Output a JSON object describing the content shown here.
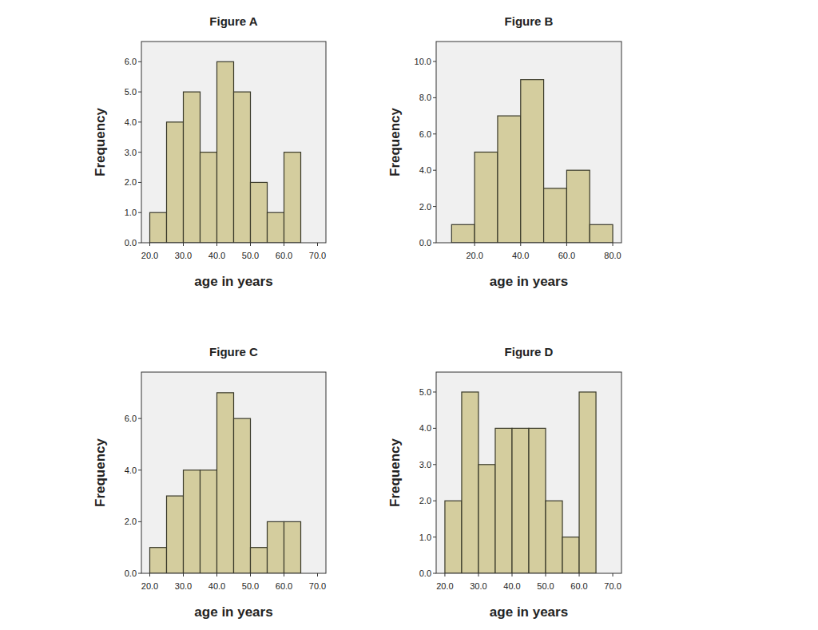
{
  "chart_data": [
    {
      "type": "histogram",
      "title": "Figure A",
      "x_label": "age in years",
      "y_label": "Frequency",
      "bins": [
        20,
        25,
        30,
        35,
        40,
        45,
        50,
        55,
        60,
        65
      ],
      "values": [
        1,
        4,
        5,
        3,
        6,
        5,
        2,
        1,
        3
      ],
      "color": "#d4cd9e",
      "grid": false,
      "xlim": [
        17.5,
        72.5
      ],
      "ylim": [
        0,
        6.67
      ],
      "xticks": [
        {
          "value": 20,
          "label": "20.0"
        },
        {
          "value": 30,
          "label": "30.0"
        },
        {
          "value": 40,
          "label": "40.0"
        },
        {
          "value": 50,
          "label": "50.0"
        },
        {
          "value": 60,
          "label": "60.0"
        },
        {
          "value": 70,
          "label": "70.0"
        }
      ],
      "yticks": [
        {
          "value": 0,
          "label": "0.0"
        },
        {
          "value": 1,
          "label": "1.0"
        },
        {
          "value": 2,
          "label": "2.0"
        },
        {
          "value": 3,
          "label": "3.0"
        },
        {
          "value": 4,
          "label": "4.0"
        },
        {
          "value": 5,
          "label": "5.0"
        },
        {
          "value": 6,
          "label": "6.0"
        }
      ]
    },
    {
      "type": "histogram",
      "title": "Figure B",
      "x_label": "age in years",
      "y_label": "Frequency",
      "bins": [
        10,
        20,
        30,
        40,
        50,
        60,
        70,
        80
      ],
      "values": [
        1,
        5,
        7,
        9,
        3,
        4,
        1
      ],
      "color": "#d4cd9e",
      "grid": false,
      "xlim": [
        3.3,
        83.8
      ],
      "ylim": [
        0,
        11.1
      ],
      "xticks": [
        {
          "value": 20,
          "label": "20.0"
        },
        {
          "value": 40,
          "label": "40.0"
        },
        {
          "value": 60,
          "label": "60.0"
        },
        {
          "value": 80,
          "label": "80.0"
        }
      ],
      "yticks": [
        {
          "value": 0,
          "label": "0.0"
        },
        {
          "value": 2,
          "label": "2.0"
        },
        {
          "value": 4,
          "label": "4.0"
        },
        {
          "value": 6,
          "label": "6.0"
        },
        {
          "value": 8,
          "label": "8.0"
        },
        {
          "value": 10,
          "label": "10.0"
        }
      ]
    },
    {
      "type": "histogram",
      "title": "Figure C",
      "x_label": "age in years",
      "y_label": "Frequency",
      "bins": [
        20,
        25,
        30,
        35,
        40,
        45,
        50,
        55,
        60,
        65
      ],
      "values": [
        1,
        3,
        4,
        4,
        7,
        6,
        1,
        2,
        2
      ],
      "color": "#d4cd9e",
      "grid": false,
      "xlim": [
        17.5,
        72.5
      ],
      "ylim": [
        0,
        7.8
      ],
      "xticks": [
        {
          "value": 20,
          "label": "20.0"
        },
        {
          "value": 30,
          "label": "30.0"
        },
        {
          "value": 40,
          "label": "40.0"
        },
        {
          "value": 50,
          "label": "50.0"
        },
        {
          "value": 60,
          "label": "60.0"
        },
        {
          "value": 70,
          "label": "70.0"
        }
      ],
      "yticks": [
        {
          "value": 0,
          "label": "0.0"
        },
        {
          "value": 2,
          "label": "2.0"
        },
        {
          "value": 4,
          "label": "4.0"
        },
        {
          "value": 6,
          "label": "6.0"
        }
      ]
    },
    {
      "type": "histogram",
      "title": "Figure D",
      "x_label": "age in years",
      "y_label": "Frequency",
      "bins": [
        20,
        25,
        30,
        35,
        40,
        45,
        50,
        55,
        60,
        65
      ],
      "values": [
        2,
        5,
        3,
        4,
        4,
        4,
        2,
        1,
        5
      ],
      "color": "#d4cd9e",
      "grid": false,
      "xlim": [
        17.4,
        72.6
      ],
      "ylim": [
        0,
        5.55
      ],
      "xticks": [
        {
          "value": 20,
          "label": "20.0"
        },
        {
          "value": 30,
          "label": "30.0"
        },
        {
          "value": 40,
          "label": "40.0"
        },
        {
          "value": 50,
          "label": "50.0"
        },
        {
          "value": 60,
          "label": "60.0"
        },
        {
          "value": 70,
          "label": "70.0"
        }
      ],
      "yticks": [
        {
          "value": 0,
          "label": "0.0"
        },
        {
          "value": 1,
          "label": "1.0"
        },
        {
          "value": 2,
          "label": "2.0"
        },
        {
          "value": 3,
          "label": "3.0"
        },
        {
          "value": 4,
          "label": "4.0"
        },
        {
          "value": 5,
          "label": "5.0"
        }
      ]
    }
  ]
}
